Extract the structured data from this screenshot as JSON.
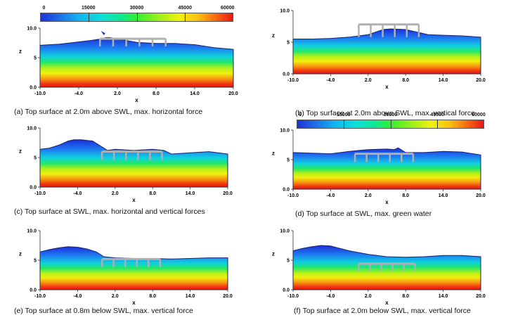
{
  "colorbar_ticks": [
    "0",
    "15000",
    "30000",
    "45000",
    "60000"
  ],
  "axis": {
    "x_title": "x",
    "z_title": "z",
    "x_ticks": [
      "-10.0",
      "-4.0",
      "2.0",
      "8.0",
      "14.0",
      "20.0"
    ],
    "z_ticks": [
      "10.0",
      "5",
      "0.0"
    ]
  },
  "palette": {
    "top": "#1a2fd8",
    "bottom": "#e01818",
    "deck": "#b0b0b0"
  },
  "panels": [
    {
      "id": "a",
      "caption": "(a) Top surface at 2.0m above SWL, max. horizontal force"
    },
    {
      "id": "b",
      "caption": "(b) Top surface at 2.0m above SWL, max. vertical force"
    },
    {
      "id": "c",
      "caption": "(c) Top surface at SWL, max. horizontal and vertical forces"
    },
    {
      "id": "d",
      "caption": "(d) Top surface at SWL, max. green water"
    },
    {
      "id": "e",
      "caption": "(e)  Top surface at 0.8m below SWL, max. vertical force"
    },
    {
      "id": "f",
      "caption": "(f)  Top surface at 2.0m below SWL, max. vertical force"
    }
  ]
}
